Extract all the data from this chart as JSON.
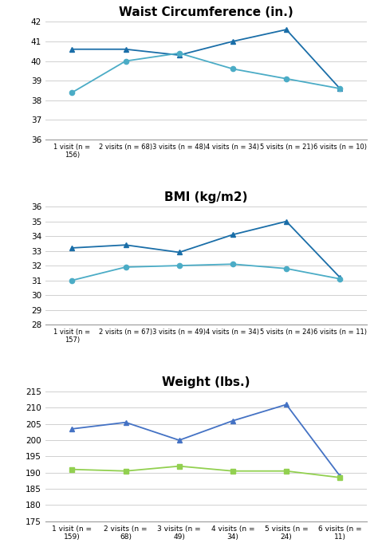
{
  "waist": {
    "title": "Waist Circumference (in.)",
    "series1": [
      40.6,
      40.6,
      40.3,
      41.0,
      41.6,
      38.6
    ],
    "series2": [
      38.4,
      40.0,
      40.4,
      39.6,
      39.1,
      38.6
    ],
    "color1": "#1a6ea8",
    "color2": "#4bacc6",
    "marker1": "^",
    "marker2": "o",
    "ylim": [
      36,
      42
    ],
    "yticks": [
      36,
      37,
      38,
      39,
      40,
      41,
      42
    ],
    "xlabels": [
      "1 visit (n =\n156)",
      "2 visits (n = 68)",
      "3 visits (n = 48)",
      "4 visits (n = 34)",
      "5 visits (n = 21)",
      "6 visits (n = 10)"
    ]
  },
  "bmi": {
    "title": "BMI (kg/m2)",
    "series1": [
      33.2,
      33.4,
      32.9,
      34.1,
      35.0,
      31.2
    ],
    "series2": [
      31.0,
      31.9,
      32.0,
      32.1,
      31.8,
      31.1
    ],
    "color1": "#1a6ea8",
    "color2": "#4bacc6",
    "marker1": "^",
    "marker2": "o",
    "ylim": [
      28,
      36
    ],
    "yticks": [
      28,
      29,
      30,
      31,
      32,
      33,
      34,
      35,
      36
    ],
    "xlabels": [
      "1 visit (n =\n157)",
      "2 visits (n = 67)",
      "3 visits (n = 49)",
      "4 visits (n = 34)",
      "5 visits (n = 24)",
      "6 visits (n = 11)"
    ]
  },
  "weight": {
    "title": "Weight (lbs.)",
    "series1": [
      203.5,
      205.5,
      200.0,
      206.0,
      211.0,
      189.0
    ],
    "series2": [
      191.0,
      190.5,
      192.0,
      190.5,
      190.5,
      188.5
    ],
    "color1": "#4472c4",
    "color2": "#92d050",
    "marker1": "^",
    "marker2": "s",
    "ylim": [
      175,
      215
    ],
    "yticks": [
      175,
      180,
      185,
      190,
      195,
      200,
      205,
      210,
      215
    ],
    "xlabels": [
      "1 visit (n =\n159)",
      "2 visits (n =\n68)",
      "3 visits (n =\n49)",
      "4 visits (n =\n34)",
      "5 visits (n =\n24)",
      "6 visits (n =\n11)"
    ]
  },
  "bg_color": "#ffffff",
  "grid_color": "#d0d0d0",
  "title_fontsize": 11,
  "label_fontsize_compact": 6.0,
  "label_fontsize_wrap": 6.5,
  "tick_fontsize": 7.5
}
